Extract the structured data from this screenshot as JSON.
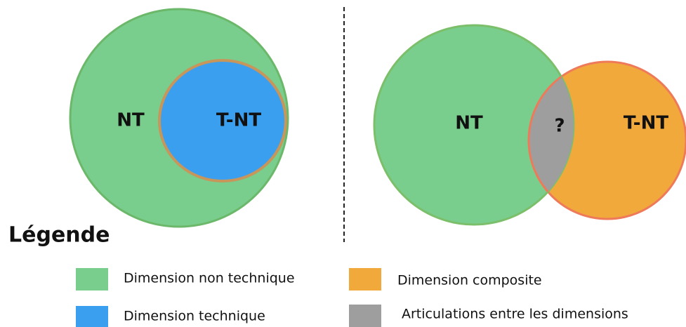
{
  "left_diagram": {
    "outer_label": "NT",
    "inner_label": "T-NT"
  },
  "right_diagram": {
    "left_label": "NT",
    "overlap_label": "?",
    "right_label": "T-NT"
  },
  "legend": {
    "title": "Légende",
    "items": [
      {
        "label": "Dimension non technique"
      },
      {
        "label": "Dimension composite"
      },
      {
        "label": "Dimension technique"
      },
      {
        "label": "Articulations entre les dimensions"
      }
    ]
  }
}
